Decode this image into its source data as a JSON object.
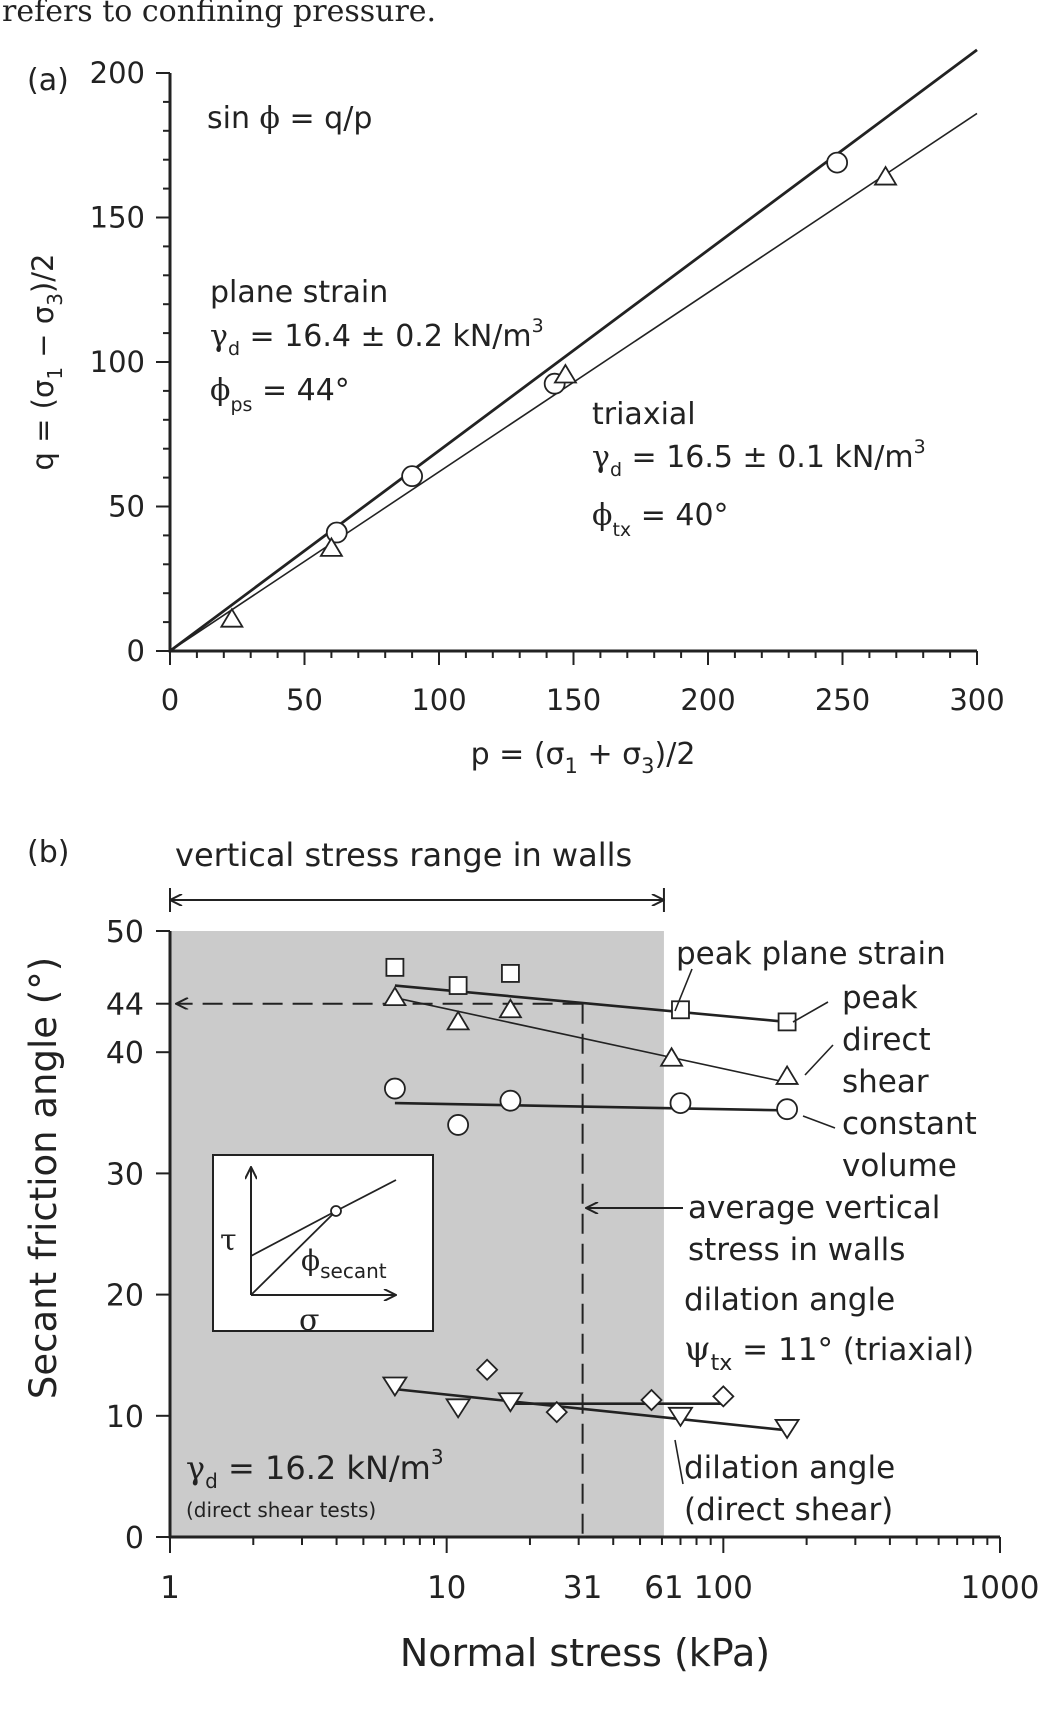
{
  "header_text": "refers to confining pressure.",
  "chart_data": [
    {
      "panel_label": "(a)",
      "type": "scatter",
      "xlabel": "p = (σ1 + σ3)/2",
      "ylabel": "q = (σ1 − σ3)/2",
      "xlim": [
        0,
        300
      ],
      "ylim": [
        0,
        200
      ],
      "xticks": [
        "0",
        "50",
        "100",
        "150",
        "200",
        "250",
        "300"
      ],
      "yticks": [
        "0",
        "50",
        "100",
        "150",
        "200"
      ],
      "grid": false,
      "annotations": {
        "equation": "sin ϕ = q/p",
        "plane_strain_title": "plane strain",
        "plane_strain_density": "γd = 16.4 ± 0.2 kN/m3",
        "plane_strain_phi": "ϕps = 44°",
        "triaxial_title": "triaxial",
        "triaxial_density": "γd = 16.5 ± 0.1 kN/m3",
        "triaxial_phi": "ϕtx = 40°"
      },
      "series": [
        {
          "name": "plane strain",
          "marker": "circle",
          "points": [
            [
              62,
              41
            ],
            [
              90,
              60.5
            ],
            [
              143,
              92.5
            ],
            [
              248,
              169
            ]
          ],
          "fit_line": [
            [
              0,
              0
            ],
            [
              300,
              208
            ]
          ]
        },
        {
          "name": "triaxial",
          "marker": "triangle-up",
          "points": [
            [
              23,
              11
            ],
            [
              60,
              35.5
            ],
            [
              147,
              95.5
            ],
            [
              266,
              164
            ]
          ],
          "fit_line": [
            [
              0,
              0
            ],
            [
              300,
              186
            ]
          ]
        }
      ]
    },
    {
      "panel_label": "(b)",
      "type": "scatter",
      "xlabel": "Normal stress (kPa)",
      "ylabel": "Secant friction angle (°)",
      "xscale": "log",
      "xlim": [
        1,
        1000
      ],
      "ylim": [
        0,
        50
      ],
      "xticks": [
        "1",
        "10",
        "31",
        "61",
        "100",
        "1000"
      ],
      "yticks": [
        "0",
        "10",
        "20",
        "30",
        "40",
        "44",
        "50"
      ],
      "grid": false,
      "shaded_range": [
        1,
        61
      ],
      "range_label": "vertical stress range in walls",
      "average_vertical_stress": 31,
      "reference_angle": 44,
      "annotations": {
        "peak_plane_strain": "peak plane strain",
        "peak_direct_shear": [
          "peak",
          "direct",
          "shear"
        ],
        "constant_volume": [
          "constant",
          "volume"
        ],
        "average_stress": [
          "average vertical",
          "stress in walls"
        ],
        "dilation_tx": [
          "dilation angle",
          "ψtx = 11° (triaxial)"
        ],
        "dilation_ds": [
          "dilation angle",
          "(direct shear)"
        ],
        "density": "γd = 16.2 kN/m3",
        "density_note": "(direct shear tests)"
      },
      "inset": {
        "y_symbol": "τ",
        "x_symbol": "σ",
        "angle_label": "ϕsecant"
      },
      "series": [
        {
          "name": "peak plane strain",
          "marker": "square",
          "points": [
            [
              6.5,
              47
            ],
            [
              11,
              45.5
            ],
            [
              17,
              46.5
            ],
            [
              70,
              43.5
            ],
            [
              170,
              42.5
            ]
          ],
          "fit_line": [
            [
              6.5,
              45.5
            ],
            [
              170,
              42.5
            ]
          ]
        },
        {
          "name": "peak direct shear",
          "marker": "triangle-up",
          "points": [
            [
              6.5,
              44.5
            ],
            [
              11,
              42.5
            ],
            [
              17,
              43.5
            ],
            [
              65,
              39.5
            ],
            [
              170,
              38
            ]
          ],
          "fit_line": [
            [
              6.5,
              44.5
            ],
            [
              170,
              37.5
            ]
          ]
        },
        {
          "name": "constant volume",
          "marker": "circle",
          "points": [
            [
              6.5,
              37
            ],
            [
              11,
              34
            ],
            [
              17,
              36
            ],
            [
              70,
              35.8
            ],
            [
              170,
              35.3
            ]
          ],
          "fit_line": [
            [
              6.5,
              35.8
            ],
            [
              170,
              35.2
            ]
          ]
        },
        {
          "name": "dilation angle (triaxial)",
          "marker": "diamond",
          "points": [
            [
              14,
              13.8
            ],
            [
              25,
              10.3
            ],
            [
              55,
              11.3
            ],
            [
              100,
              11.6
            ]
          ],
          "fit_line": [
            [
              17,
              11
            ],
            [
              100,
              11
            ]
          ]
        },
        {
          "name": "dilation angle (direct shear)",
          "marker": "triangle-down",
          "points": [
            [
              6.5,
              12.5
            ],
            [
              11,
              10.7
            ],
            [
              17,
              11.2
            ],
            [
              70,
              10
            ],
            [
              170,
              9
            ]
          ],
          "fit_line": [
            [
              6.5,
              12.2
            ],
            [
              170,
              8.8
            ]
          ]
        }
      ]
    }
  ]
}
